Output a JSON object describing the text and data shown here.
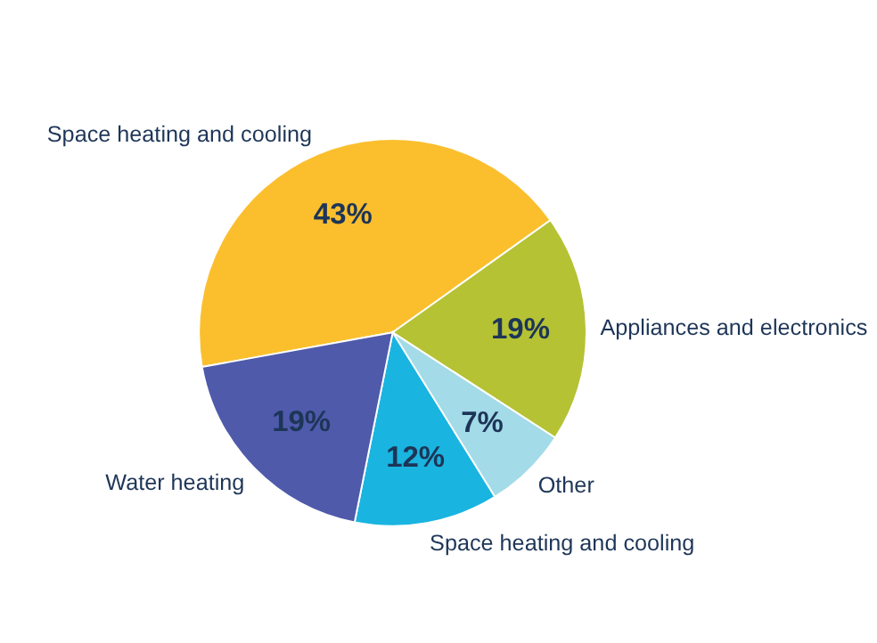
{
  "chart_data": {
    "type": "pie",
    "categories": [
      "Space heating and cooling",
      "Appliances and electronics",
      "Other",
      "Space heating and cooling",
      "Water heating"
    ],
    "values": [
      43,
      19,
      7,
      12,
      19
    ],
    "value_labels": [
      "43%",
      "19%",
      "7%",
      "12%",
      "19%"
    ],
    "colors": [
      "#fbbf2e",
      "#b5c234",
      "#a3dbe8",
      "#1ab4e0",
      "#4f5aab"
    ],
    "legend": false
  }
}
